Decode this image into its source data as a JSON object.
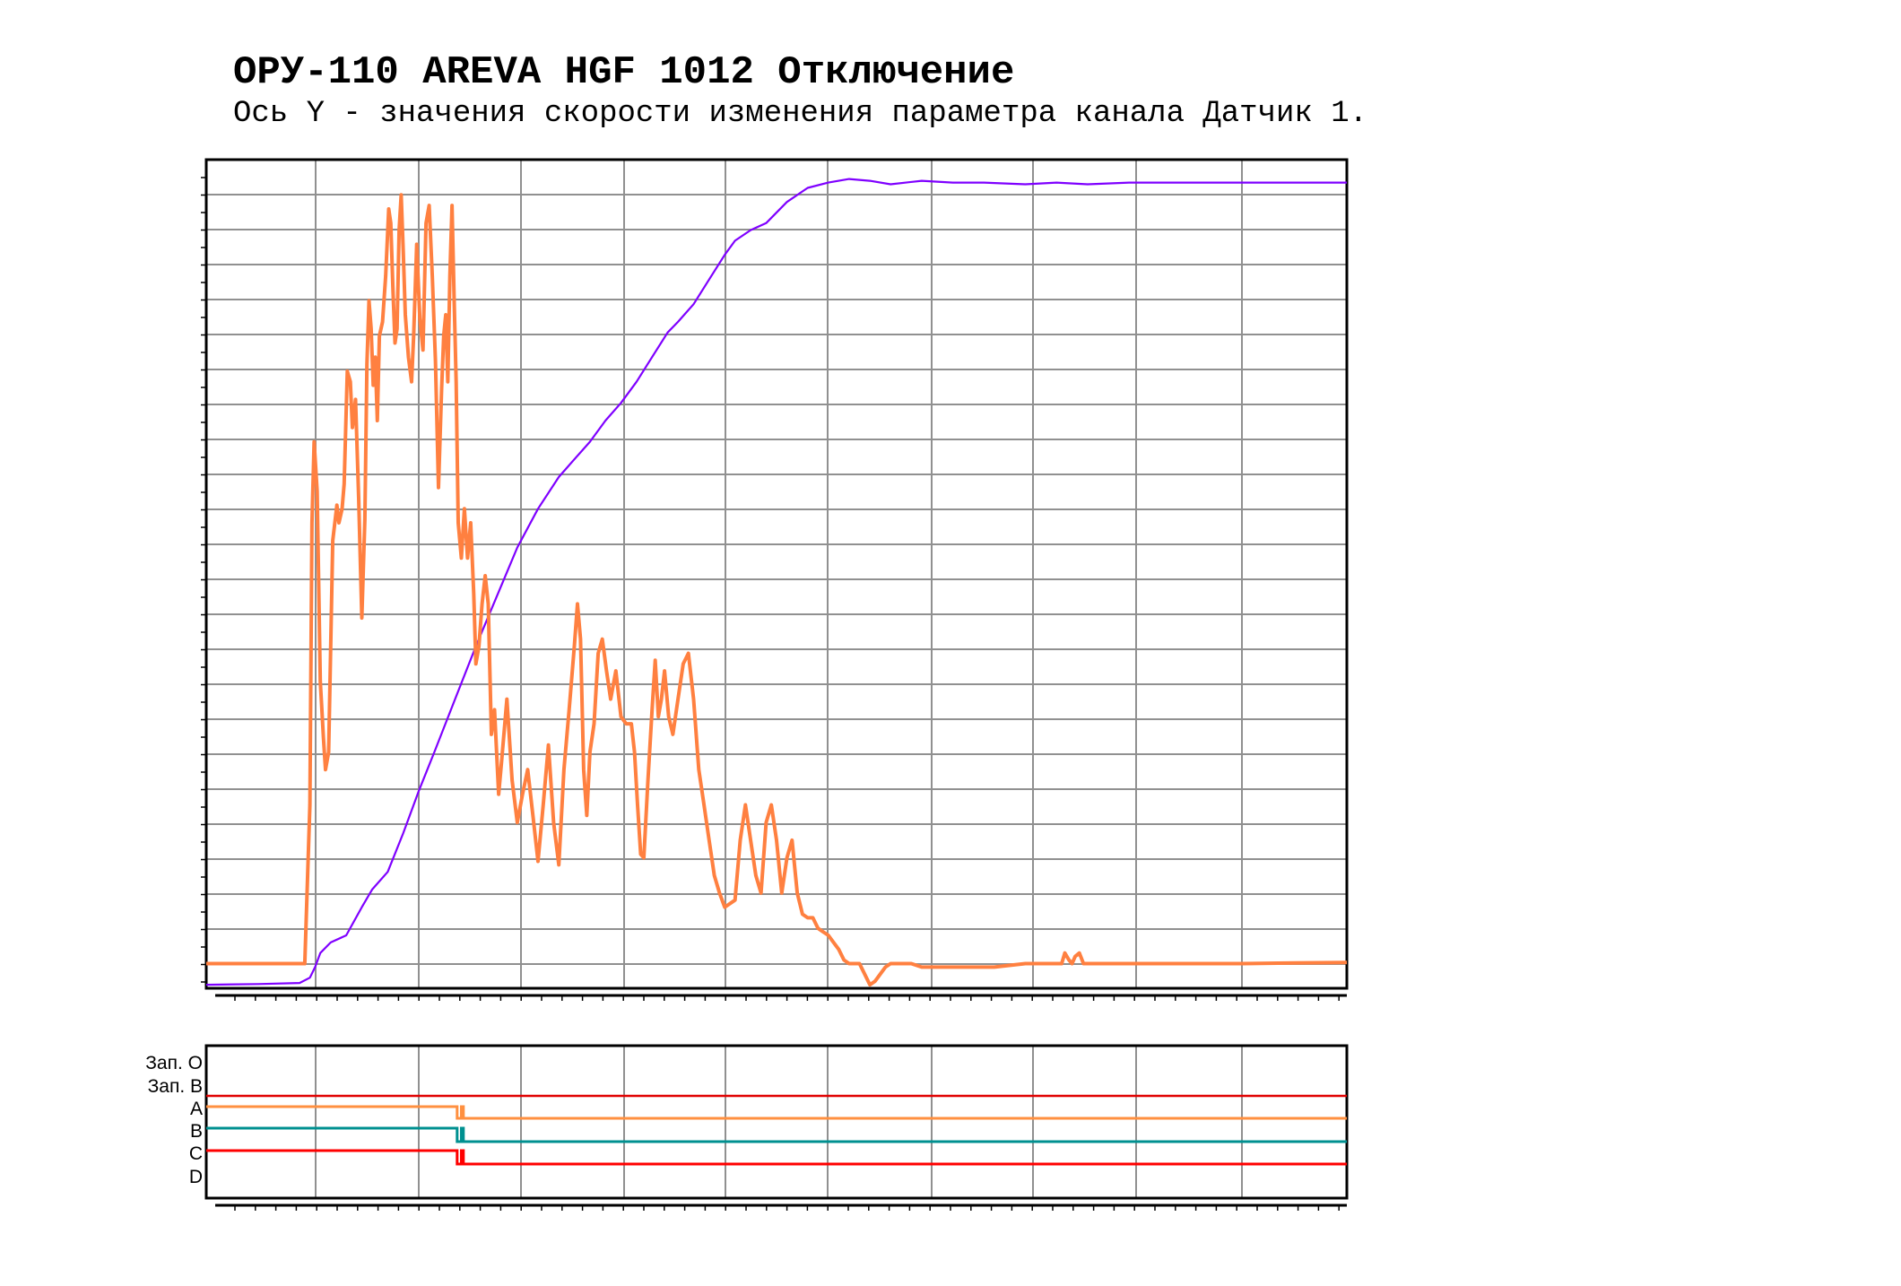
{
  "title": "ОРУ-110 AREVA HGF 1012 Отключение",
  "subtitle": "Ось Y - значения скорости изменения параметра канала Датчик 1.",
  "chart_data": [
    {
      "type": "line",
      "title": "ОРУ-110 AREVA HGF 1012 Отключение",
      "subtitle": "Ось Y - значения скорости изменения параметра канала Датчик 1.",
      "xlim": [
        0,
        11
      ],
      "ylim": [
        -0.7,
        22.8
      ],
      "grid": true,
      "series": [
        {
          "color": "#7f00ff",
          "points": [
            [
              0,
              -0.6
            ],
            [
              0.5,
              -0.58
            ],
            [
              0.9,
              -0.55
            ],
            [
              1.0,
              -0.4
            ],
            [
              1.05,
              -0.1
            ],
            [
              1.1,
              0.3
            ],
            [
              1.2,
              0.6
            ],
            [
              1.35,
              0.8
            ],
            [
              1.5,
              1.6
            ],
            [
              1.6,
              2.1
            ],
            [
              1.75,
              2.6
            ],
            [
              1.9,
              3.7
            ],
            [
              2.05,
              4.9
            ],
            [
              2.2,
              6.0
            ],
            [
              2.4,
              7.5
            ],
            [
              2.6,
              9.0
            ],
            [
              2.8,
              10.4
            ],
            [
              3.0,
              11.8
            ],
            [
              3.2,
              12.9
            ],
            [
              3.4,
              13.8
            ],
            [
              3.55,
              14.3
            ],
            [
              3.7,
              14.8
            ],
            [
              3.85,
              15.4
            ],
            [
              4.0,
              15.9
            ],
            [
              4.15,
              16.5
            ],
            [
              4.3,
              17.2
            ],
            [
              4.45,
              17.9
            ],
            [
              4.55,
              18.2
            ],
            [
              4.7,
              18.7
            ],
            [
              4.85,
              19.4
            ],
            [
              5.0,
              20.1
            ],
            [
              5.1,
              20.5
            ],
            [
              5.25,
              20.8
            ],
            [
              5.4,
              21.0
            ],
            [
              5.6,
              21.6
            ],
            [
              5.8,
              22.0
            ],
            [
              6.0,
              22.15
            ],
            [
              6.2,
              22.25
            ],
            [
              6.4,
              22.2
            ],
            [
              6.6,
              22.1
            ],
            [
              6.9,
              22.2
            ],
            [
              7.2,
              22.15
            ],
            [
              7.5,
              22.15
            ],
            [
              7.9,
              22.1
            ],
            [
              8.2,
              22.15
            ],
            [
              8.5,
              22.1
            ],
            [
              8.9,
              22.15
            ],
            [
              9.5,
              22.15
            ],
            [
              10.2,
              22.15
            ],
            [
              11.0,
              22.15
            ]
          ]
        },
        {
          "color": "#ff8040",
          "points": [
            [
              0,
              0
            ],
            [
              0.9,
              0
            ],
            [
              0.95,
              0
            ],
            [
              1.0,
              4.5
            ],
            [
              1.02,
              12.5
            ],
            [
              1.04,
              14.8
            ],
            [
              1.07,
              13.4
            ],
            [
              1.1,
              8.0
            ],
            [
              1.13,
              6.4
            ],
            [
              1.15,
              5.5
            ],
            [
              1.18,
              6.0
            ],
            [
              1.22,
              12.0
            ],
            [
              1.26,
              13.0
            ],
            [
              1.28,
              12.5
            ],
            [
              1.31,
              12.9
            ],
            [
              1.33,
              13.6
            ],
            [
              1.36,
              16.8
            ],
            [
              1.39,
              16.5
            ],
            [
              1.41,
              15.2
            ],
            [
              1.44,
              16.0
            ],
            [
              1.47,
              13.2
            ],
            [
              1.5,
              9.8
            ],
            [
              1.53,
              12.6
            ],
            [
              1.55,
              17.0
            ],
            [
              1.57,
              18.8
            ],
            [
              1.59,
              18.0
            ],
            [
              1.61,
              16.4
            ],
            [
              1.63,
              17.2
            ],
            [
              1.65,
              15.4
            ],
            [
              1.67,
              17.8
            ],
            [
              1.7,
              18.2
            ],
            [
              1.73,
              19.5
            ],
            [
              1.76,
              21.4
            ],
            [
              1.78,
              21.0
            ],
            [
              1.8,
              19.2
            ],
            [
              1.82,
              17.6
            ],
            [
              1.84,
              18.0
            ],
            [
              1.86,
              20.8
            ],
            [
              1.88,
              21.8
            ],
            [
              1.9,
              20.2
            ],
            [
              1.92,
              18.4
            ],
            [
              1.95,
              17.2
            ],
            [
              1.98,
              16.5
            ],
            [
              2.0,
              17.8
            ],
            [
              2.03,
              20.4
            ],
            [
              2.06,
              18.3
            ],
            [
              2.09,
              17.4
            ],
            [
              2.12,
              21.0
            ],
            [
              2.15,
              21.5
            ],
            [
              2.18,
              19.5
            ],
            [
              2.21,
              17.1
            ],
            [
              2.24,
              13.5
            ],
            [
              2.27,
              16.3
            ],
            [
              2.29,
              17.8
            ],
            [
              2.31,
              18.4
            ],
            [
              2.33,
              16.5
            ],
            [
              2.35,
              19.5
            ],
            [
              2.37,
              21.5
            ],
            [
              2.39,
              18.9
            ],
            [
              2.41,
              16.5
            ],
            [
              2.43,
              12.5
            ],
            [
              2.46,
              11.5
            ],
            [
              2.49,
              12.9
            ],
            [
              2.52,
              11.5
            ],
            [
              2.55,
              12.5
            ],
            [
              2.58,
              10.5
            ],
            [
              2.6,
              8.5
            ],
            [
              2.63,
              9.0
            ],
            [
              2.66,
              10.2
            ],
            [
              2.69,
              11.0
            ],
            [
              2.72,
              10.2
            ],
            [
              2.75,
              6.5
            ],
            [
              2.78,
              7.2
            ],
            [
              2.82,
              4.8
            ],
            [
              2.85,
              5.8
            ],
            [
              2.9,
              7.5
            ],
            [
              2.95,
              5.2
            ],
            [
              3.0,
              4.0
            ],
            [
              3.05,
              4.8
            ],
            [
              3.1,
              5.5
            ],
            [
              3.15,
              4.2
            ],
            [
              3.2,
              2.9
            ],
            [
              3.25,
              4.5
            ],
            [
              3.3,
              6.2
            ],
            [
              3.35,
              4.0
            ],
            [
              3.4,
              2.8
            ],
            [
              3.45,
              5.5
            ],
            [
              3.5,
              7.2
            ],
            [
              3.55,
              9.0
            ],
            [
              3.58,
              10.2
            ],
            [
              3.61,
              9.2
            ],
            [
              3.64,
              5.5
            ],
            [
              3.67,
              4.2
            ],
            [
              3.7,
              6.0
            ],
            [
              3.74,
              6.8
            ],
            [
              3.78,
              8.8
            ],
            [
              3.82,
              9.2
            ],
            [
              3.86,
              8.3
            ],
            [
              3.9,
              7.5
            ],
            [
              3.95,
              8.3
            ],
            [
              4.0,
              7.0
            ],
            [
              4.05,
              6.8
            ],
            [
              4.1,
              6.8
            ],
            [
              4.13,
              6.0
            ],
            [
              4.16,
              4.5
            ],
            [
              4.19,
              3.1
            ],
            [
              4.22,
              3.0
            ],
            [
              4.26,
              5.2
            ],
            [
              4.3,
              7.2
            ],
            [
              4.33,
              8.6
            ],
            [
              4.36,
              7.0
            ],
            [
              4.39,
              7.5
            ],
            [
              4.42,
              8.3
            ],
            [
              4.46,
              7.0
            ],
            [
              4.5,
              6.5
            ],
            [
              4.55,
              7.5
            ],
            [
              4.6,
              8.5
            ],
            [
              4.65,
              8.8
            ],
            [
              4.7,
              7.5
            ],
            [
              4.75,
              5.5
            ],
            [
              4.8,
              4.5
            ],
            [
              4.85,
              3.5
            ],
            [
              4.9,
              2.5
            ],
            [
              4.95,
              2.0
            ],
            [
              5.0,
              1.6
            ],
            [
              5.05,
              1.7
            ],
            [
              5.1,
              1.8
            ],
            [
              5.15,
              3.5
            ],
            [
              5.2,
              4.5
            ],
            [
              5.25,
              3.5
            ],
            [
              5.3,
              2.5
            ],
            [
              5.35,
              2.0
            ],
            [
              5.4,
              4.0
            ],
            [
              5.45,
              4.5
            ],
            [
              5.5,
              3.5
            ],
            [
              5.55,
              2.0
            ],
            [
              5.6,
              3.0
            ],
            [
              5.65,
              3.5
            ],
            [
              5.7,
              2.0
            ],
            [
              5.75,
              1.4
            ],
            [
              5.8,
              1.3
            ],
            [
              5.85,
              1.3
            ],
            [
              5.9,
              1.0
            ],
            [
              5.95,
              0.9
            ],
            [
              6.0,
              0.8
            ],
            [
              6.05,
              0.6
            ],
            [
              6.1,
              0.4
            ],
            [
              6.15,
              0.1
            ],
            [
              6.2,
              0.0
            ],
            [
              6.3,
              0.0
            ],
            [
              6.35,
              -0.3
            ],
            [
              6.4,
              -0.6
            ],
            [
              6.45,
              -0.5
            ],
            [
              6.5,
              -0.3
            ],
            [
              6.55,
              -0.1
            ],
            [
              6.6,
              0.0
            ],
            [
              6.7,
              0.0
            ],
            [
              6.8,
              0.0
            ],
            [
              6.9,
              -0.1
            ],
            [
              7.0,
              -0.1
            ],
            [
              7.3,
              -0.1
            ],
            [
              7.6,
              -0.1
            ],
            [
              7.9,
              0.0
            ],
            [
              8.1,
              0.0
            ],
            [
              8.25,
              0.0
            ],
            [
              8.28,
              0.3
            ],
            [
              8.32,
              0.1
            ],
            [
              8.35,
              0.0
            ],
            [
              8.38,
              0.2
            ],
            [
              8.42,
              0.3
            ],
            [
              8.46,
              0.0
            ],
            [
              8.6,
              0.0
            ],
            [
              9.0,
              0.0
            ],
            [
              9.5,
              0.0
            ],
            [
              10.0,
              0.0
            ],
            [
              10.5,
              0.02
            ],
            [
              11.0,
              0.03
            ]
          ]
        }
      ]
    },
    {
      "type": "line",
      "xlim": [
        0,
        11
      ],
      "grid": true,
      "channel_labels": [
        "Зап. О",
        "Зап. В",
        "A",
        "B",
        "C",
        "D"
      ],
      "series": [
        {
          "name": "Зап. В",
          "color": "#e00000",
          "points": [
            [
              0,
              1
            ],
            [
              11,
              1
            ]
          ]
        },
        {
          "name": "A",
          "color": "#ff9040",
          "points": [
            [
              0,
              1
            ],
            [
              2.42,
              1
            ],
            [
              2.42,
              0
            ],
            [
              2.46,
              0
            ],
            [
              2.46,
              1
            ],
            [
              2.48,
              1
            ],
            [
              2.48,
              0
            ],
            [
              2.52,
              0
            ],
            [
              2.52,
              0
            ],
            [
              11,
              0
            ]
          ]
        },
        {
          "name": "B",
          "color": "#009090",
          "points": [
            [
              0,
              1
            ],
            [
              2.42,
              1
            ],
            [
              2.42,
              0
            ],
            [
              2.46,
              0
            ],
            [
              2.46,
              1
            ],
            [
              2.48,
              1
            ],
            [
              2.48,
              0
            ],
            [
              2.52,
              0
            ],
            [
              11,
              0
            ]
          ]
        },
        {
          "name": "C",
          "color": "#ff0000",
          "points": [
            [
              0,
              1
            ],
            [
              2.42,
              1
            ],
            [
              2.42,
              0
            ],
            [
              2.46,
              0
            ],
            [
              2.46,
              1
            ],
            [
              2.48,
              1
            ],
            [
              2.48,
              0
            ],
            [
              2.52,
              0
            ],
            [
              11,
              0
            ]
          ]
        }
      ]
    }
  ]
}
